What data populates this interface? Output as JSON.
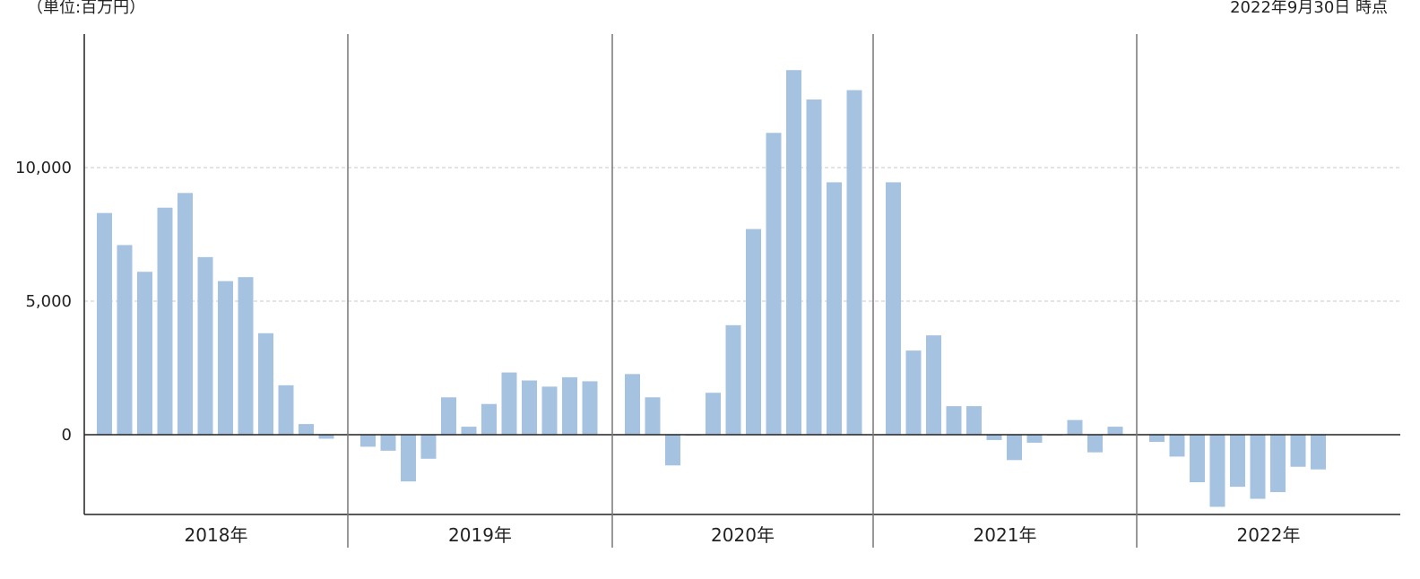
{
  "header": {
    "unit_label": "（単位:百万円）",
    "as_of_label": "2022年9月30日 時点"
  },
  "colors": {
    "bar": "#a5c3e1",
    "axis": "#222222",
    "divider": "#777777",
    "grid": "#c8c8c8"
  },
  "chart_data": {
    "type": "bar",
    "title": "",
    "xlabel": "",
    "ylabel": "",
    "ylim": [
      -3000,
      15000
    ],
    "yticks": [
      {
        "value": 0,
        "label": "0"
      },
      {
        "value": 5000,
        "label": "5,000"
      },
      {
        "value": 10000,
        "label": "10,000"
      }
    ],
    "grid": "horizontal dashed at 5,000 and 10,000",
    "groups": [
      {
        "label": "2018年",
        "values": [
          8300,
          7100,
          6100,
          8500,
          9050,
          6650,
          5750,
          5900,
          3800,
          1850,
          400,
          -150
        ]
      },
      {
        "label": "2019年",
        "values": [
          -450,
          -600,
          -1750,
          -900,
          1400,
          300,
          1150,
          2330,
          2030,
          1800,
          2150,
          2000
        ]
      },
      {
        "label": "2020年",
        "values": [
          2270,
          1400,
          -1150,
          -30,
          1570,
          4100,
          7700,
          11300,
          13650,
          12550,
          9450,
          12900
        ]
      },
      {
        "label": "2021年",
        "values": [
          9450,
          3150,
          3720,
          1070,
          1070,
          -200,
          -950,
          -300,
          -30,
          550,
          -660,
          300
        ]
      },
      {
        "label": "2022年",
        "values": [
          -270,
          -820,
          -1780,
          -2700,
          -1950,
          -2400,
          -2150,
          -1200,
          -1300
        ]
      }
    ]
  }
}
